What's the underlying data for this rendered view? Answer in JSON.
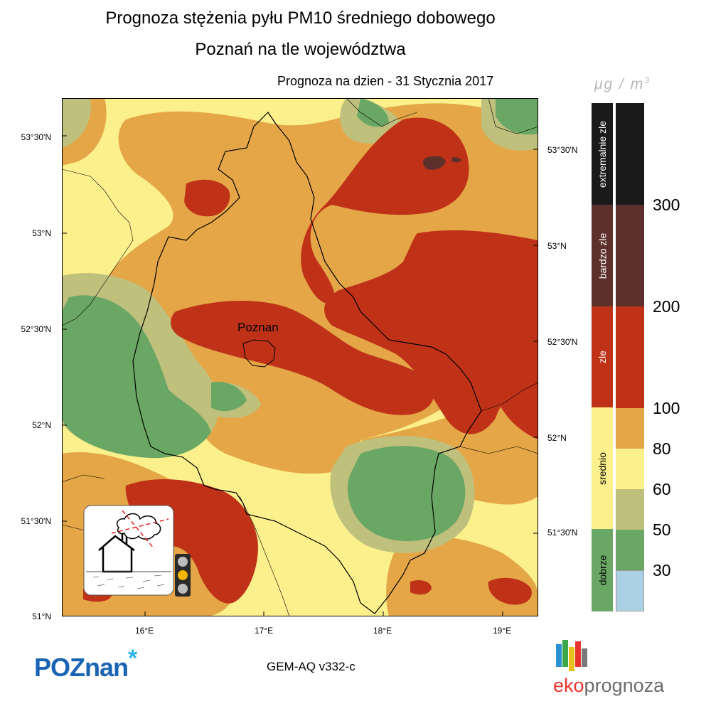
{
  "title_line1": "Prognoza stężenia pyłu PM10 średniego dobowego",
  "title_line2": "Poznań na tle województwa",
  "forecast_date": "Prognoza na dzien -  31 Stycznia 2017",
  "units": {
    "mu": "μg / m",
    "exp": "3"
  },
  "city_label": "Poznan",
  "lat_labels_left": [
    "53°30'N",
    "53°N",
    "52°30'N",
    "52°N",
    "51°30'N",
    "51°N"
  ],
  "lat_labels_right": [
    "53°30'N",
    "53°N",
    "52°30'N",
    "52°N",
    "51°30'N"
  ],
  "lon_labels": [
    "16°E",
    "17°E",
    "18°E",
    "19°E"
  ],
  "legend": {
    "categories": [
      "extremalnie zle",
      "bardzo zle",
      "zle",
      "srednio",
      "dobrze"
    ],
    "category_colors": [
      "#1a1a1a",
      "#5e302c",
      "#bf3218",
      "#fbf08c",
      "#6aa764"
    ],
    "ticks": [
      "300",
      "200",
      "100",
      "80",
      "60",
      "50",
      "30"
    ],
    "scale_colors": [
      "#1a1a1a",
      "#5e302c",
      "#bf3218",
      "#e4a646",
      "#fbf08c",
      "#bfc07c",
      "#6aa764",
      "#a9d1e3"
    ]
  },
  "model": "GEM-AQ v332-c",
  "logo_poznan": {
    "text": "POZnan",
    "star": "*"
  },
  "logo_eko": {
    "part1": "eko",
    "part2": "prognoza"
  },
  "traffic_light": {
    "active": "amber"
  }
}
